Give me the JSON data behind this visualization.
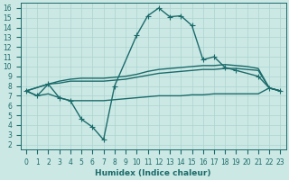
{
  "background_color": "#cce8e4",
  "grid_color": "#aad4d0",
  "line_color": "#1a6b6b",
  "line_width": 1.0,
  "marker": "+",
  "marker_size": 4,
  "marker_lw": 0.8,
  "xlabel": "Humidex (Indice chaleur)",
  "xlabel_fontsize": 6.5,
  "tick_fontsize": 5.5,
  "xlim": [
    -0.5,
    23.5
  ],
  "ylim": [
    1.5,
    16.5
  ],
  "xticks": [
    0,
    1,
    2,
    3,
    4,
    5,
    6,
    7,
    8,
    9,
    10,
    11,
    12,
    13,
    14,
    15,
    16,
    17,
    18,
    19,
    20,
    21,
    22,
    23
  ],
  "yticks": [
    2,
    3,
    4,
    5,
    6,
    7,
    8,
    9,
    10,
    11,
    12,
    13,
    14,
    15,
    16
  ],
  "line1_x": [
    0,
    1,
    2,
    3,
    4,
    5,
    6,
    7,
    8,
    10,
    11,
    12,
    13,
    14,
    15,
    16,
    17,
    18,
    19,
    21,
    22,
    23
  ],
  "line1_y": [
    7.5,
    7.0,
    8.2,
    6.8,
    6.5,
    4.6,
    3.8,
    2.5,
    8.0,
    13.2,
    15.2,
    16.0,
    15.1,
    15.2,
    14.2,
    10.7,
    11.0,
    9.9,
    9.6,
    9.0,
    7.8,
    7.5
  ],
  "line2_x": [
    0,
    2,
    3,
    4,
    5,
    6,
    7,
    8,
    9,
    10,
    11,
    12,
    13,
    14,
    15,
    16,
    17,
    18,
    19,
    20,
    21,
    22,
    23
  ],
  "line2_y": [
    7.5,
    8.2,
    8.3,
    8.5,
    8.5,
    8.5,
    8.5,
    8.6,
    8.7,
    8.9,
    9.1,
    9.3,
    9.4,
    9.5,
    9.6,
    9.7,
    9.7,
    9.8,
    9.8,
    9.7,
    9.6,
    7.8,
    7.5
  ],
  "line3_x": [
    0,
    2,
    3,
    4,
    5,
    6,
    7,
    8,
    9,
    10,
    11,
    12,
    13,
    14,
    15,
    16,
    17,
    18,
    19,
    20,
    21,
    22,
    23
  ],
  "line3_y": [
    7.5,
    8.2,
    8.5,
    8.7,
    8.8,
    8.8,
    8.8,
    8.9,
    9.0,
    9.2,
    9.5,
    9.7,
    9.8,
    9.9,
    10.0,
    10.1,
    10.1,
    10.2,
    10.1,
    10.0,
    9.8,
    7.8,
    7.5
  ],
  "line4_x": [
    0,
    1,
    2,
    3,
    4,
    5,
    6,
    7,
    8,
    9,
    10,
    11,
    12,
    13,
    14,
    15,
    16,
    17,
    18,
    19,
    20,
    21,
    22,
    23
  ],
  "line4_y": [
    7.5,
    7.0,
    7.2,
    6.8,
    6.5,
    6.5,
    6.5,
    6.5,
    6.6,
    6.7,
    6.8,
    6.9,
    7.0,
    7.0,
    7.0,
    7.1,
    7.1,
    7.2,
    7.2,
    7.2,
    7.2,
    7.2,
    7.8,
    7.5
  ]
}
